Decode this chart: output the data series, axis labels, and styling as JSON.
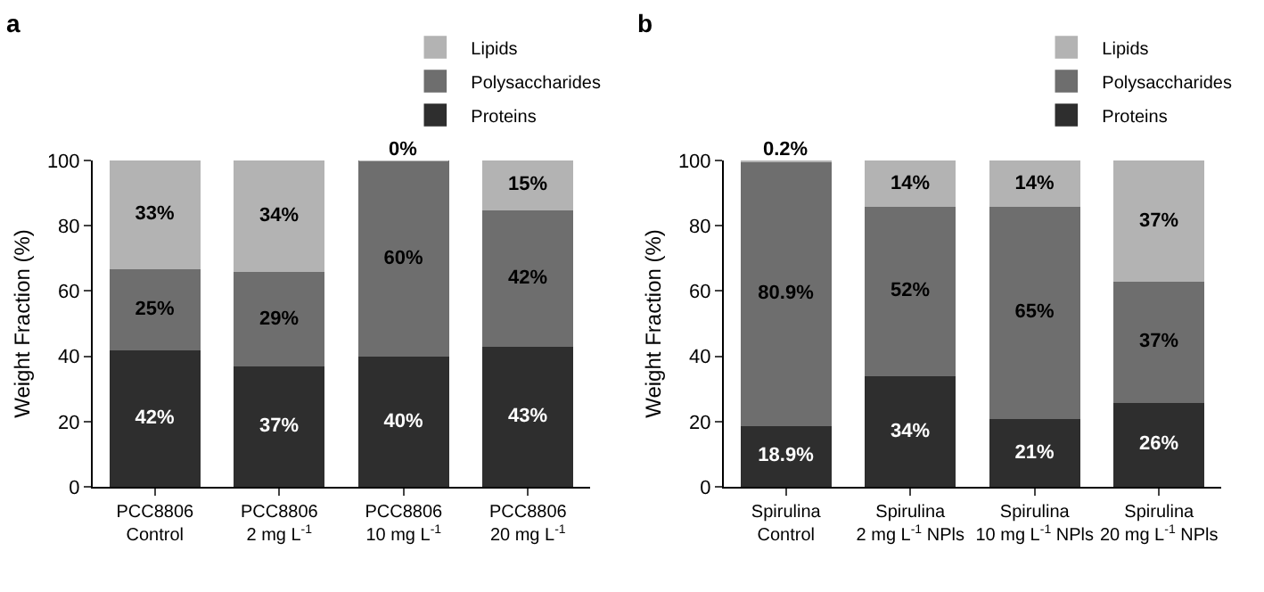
{
  "chart_data": [
    {
      "type": "bar",
      "title": "a",
      "ylabel": "Weight Fraction (%)",
      "stacked": true,
      "legend": "top right",
      "grid": false,
      "categories": [
        "PCC8806\nControl",
        "PCC8806\n2 mg L$^{-1}$",
        "PCC8806\n10 mg L$^{-1}$",
        "PCC8806\n20 mg L$^{-1}$"
      ],
      "ylim": [
        0,
        100
      ],
      "yticks": [
        0,
        20,
        40,
        60,
        80,
        100
      ],
      "series": [
        {
          "name": "Proteins",
          "color": "#2e2e2e",
          "values": [
            42,
            37,
            40,
            43
          ],
          "value_labels": [
            "42%",
            "37%",
            "40%",
            "43%"
          ]
        },
        {
          "name": "Polysaccharides",
          "color": "#6e6e6e",
          "values": [
            25,
            29,
            60,
            42
          ],
          "value_labels": [
            "25%",
            "29%",
            "60%",
            "42%"
          ]
        },
        {
          "name": "Lipids",
          "color": "#b3b3b3",
          "values": [
            33,
            34,
            0,
            15
          ],
          "value_labels": [
            "33%",
            "34%",
            "0%",
            "15%"
          ]
        }
      ]
    },
    {
      "type": "bar",
      "title": "b",
      "ylabel": "Weight Fraction (%)",
      "stacked": true,
      "legend": "top right",
      "grid": false,
      "categories": [
        "Spirulina\nControl",
        "Spirulina\n2 mg L$^{-1}$ NPls",
        "Spirulina\n10 mg L$^{-1}$ NPls",
        "Spirulina\n20 mg L$^{-1}$ NPls"
      ],
      "ylim": [
        0,
        100
      ],
      "yticks": [
        0,
        20,
        40,
        60,
        80,
        100
      ],
      "series": [
        {
          "name": "Proteins",
          "color": "#2e2e2e",
          "values": [
            18.9,
            34,
            21,
            26
          ],
          "value_labels": [
            "18.9%",
            "34%",
            "21%",
            "26%"
          ]
        },
        {
          "name": "Polysaccharides",
          "color": "#6e6e6e",
          "values": [
            80.9,
            52,
            65,
            37
          ],
          "value_labels": [
            "80.9%",
            "52%",
            "65%",
            "37%"
          ]
        },
        {
          "name": "Lipids",
          "color": "#b3b3b3",
          "values": [
            0.2,
            14,
            14,
            37
          ],
          "value_labels": [
            "0.2%",
            "14%",
            "14%",
            "37%"
          ]
        }
      ]
    }
  ]
}
